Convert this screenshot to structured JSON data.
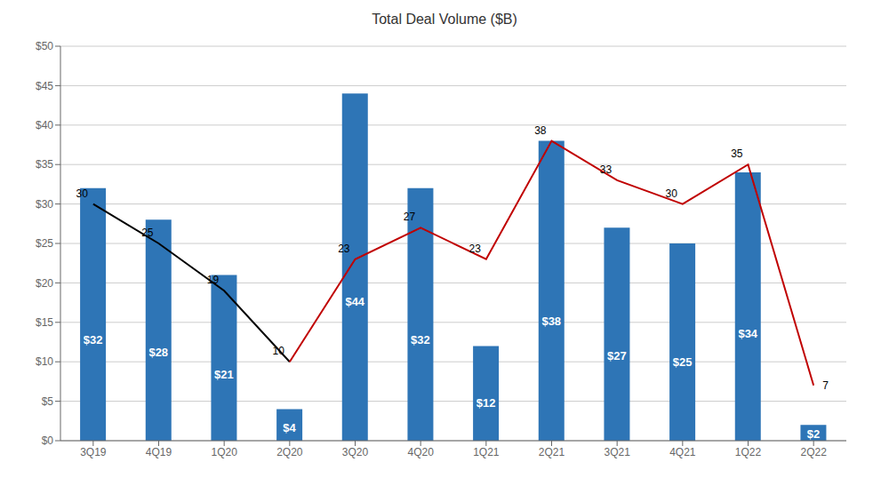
{
  "chart_data": {
    "type": "bar",
    "title": "Total Deal Volume ($B)",
    "categories": [
      "3Q19",
      "4Q19",
      "1Q20",
      "2Q20",
      "3Q20",
      "4Q20",
      "1Q21",
      "2Q21",
      "3Q21",
      "4Q21",
      "1Q22",
      "2Q22"
    ],
    "series": [
      {
        "type": "bar",
        "color": "#2E75B6",
        "values": [
          32,
          28,
          21,
          4,
          44,
          32,
          12,
          38,
          27,
          25,
          34,
          2
        ],
        "value_labels": [
          "$32",
          "$28",
          "$21",
          "$4",
          "$44",
          "$32",
          "$12",
          "$38",
          "$27",
          "$25",
          "$34",
          "$2"
        ],
        "data_labels": true
      },
      {
        "type": "line",
        "colors": [
          "#000000",
          "#000000",
          "#000000",
          "#000000",
          "#C00000",
          "#C00000",
          "#C00000",
          "#C00000",
          "#C00000",
          "#C00000",
          "#C00000",
          "#C00000"
        ],
        "values": [
          30,
          25,
          19,
          10,
          23,
          27,
          23,
          38,
          33,
          30,
          35,
          7
        ],
        "data_labels": true
      }
    ],
    "ylim": [
      0,
      50
    ],
    "yticks": [
      {
        "value": 0,
        "label": "$0"
      },
      {
        "value": 5,
        "label": "$5"
      },
      {
        "value": 10,
        "label": "$10"
      },
      {
        "value": 15,
        "label": "$15"
      },
      {
        "value": 20,
        "label": "$20"
      },
      {
        "value": 25,
        "label": "$25"
      },
      {
        "value": 30,
        "label": "$30"
      },
      {
        "value": 35,
        "label": "$35"
      },
      {
        "value": 40,
        "label": "$40"
      },
      {
        "value": 45,
        "label": "$45"
      },
      {
        "value": 50,
        "label": "$50"
      }
    ],
    "grid": true
  }
}
